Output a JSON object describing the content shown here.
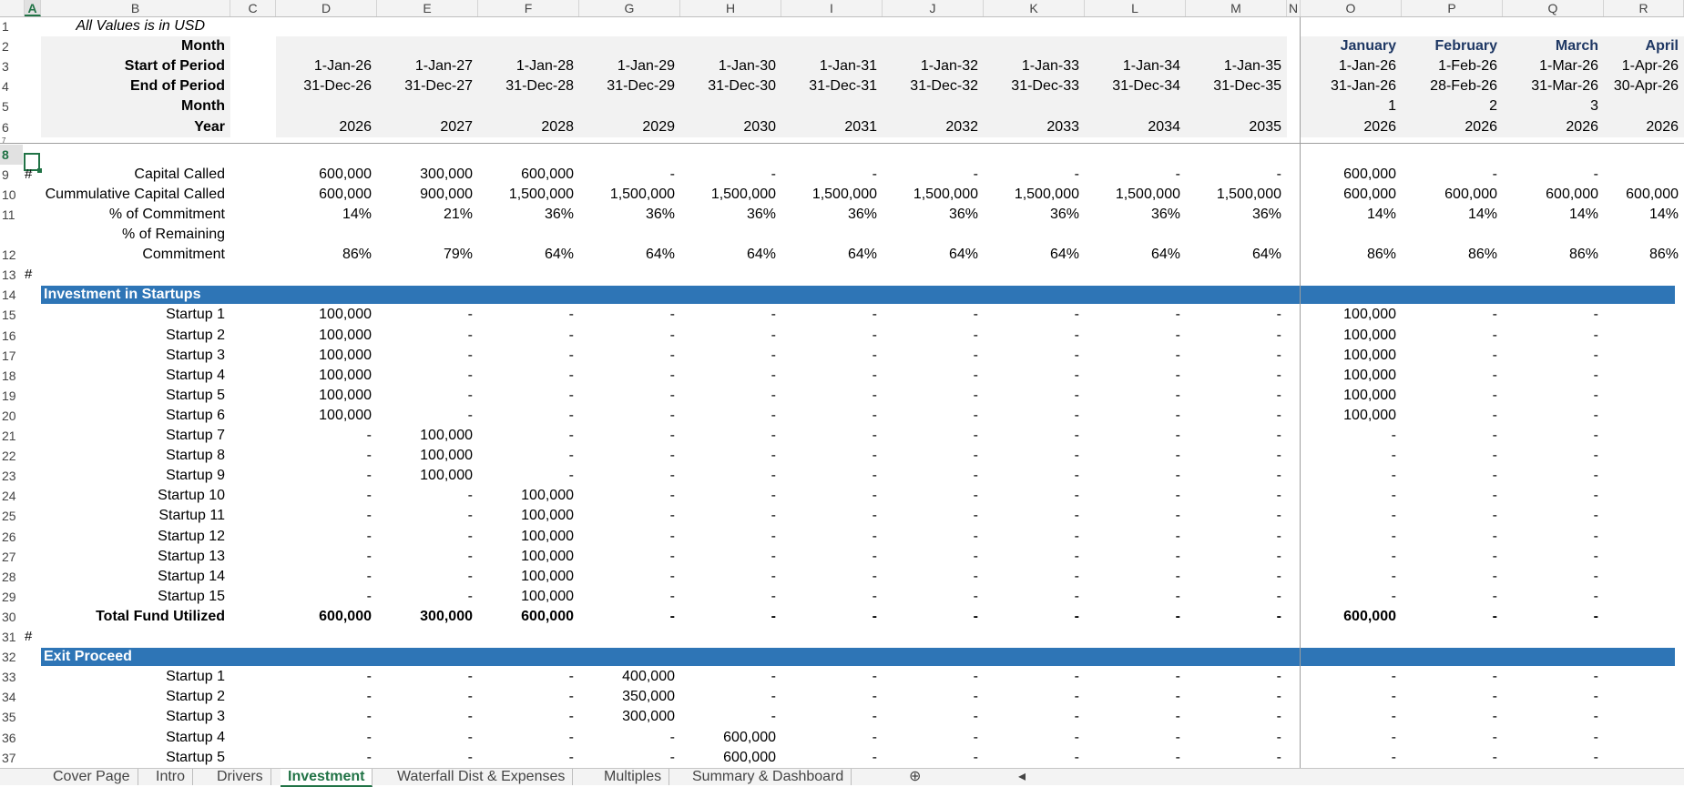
{
  "columns": [
    {
      "letter": "A",
      "x": 27,
      "w": 18,
      "active": true
    },
    {
      "letter": "B",
      "x": 45,
      "w": 208
    },
    {
      "letter": "C",
      "x": 253,
      "w": 50
    },
    {
      "letter": "D",
      "x": 303,
      "w": 111
    },
    {
      "letter": "E",
      "x": 414,
      "w": 111
    },
    {
      "letter": "F",
      "x": 525,
      "w": 111
    },
    {
      "letter": "G",
      "x": 636,
      "w": 111
    },
    {
      "letter": "H",
      "x": 747,
      "w": 111
    },
    {
      "letter": "I",
      "x": 858,
      "w": 111
    },
    {
      "letter": "J",
      "x": 969,
      "w": 111
    },
    {
      "letter": "K",
      "x": 1080,
      "w": 111
    },
    {
      "letter": "L",
      "x": 1191,
      "w": 111
    },
    {
      "letter": "M",
      "x": 1302,
      "w": 111
    },
    {
      "letter": "N",
      "x": 1413,
      "w": 15
    },
    {
      "letter": "O",
      "x": 1428,
      "w": 111
    },
    {
      "letter": "P",
      "x": 1539,
      "w": 111
    },
    {
      "letter": "Q",
      "x": 1650,
      "w": 111
    },
    {
      "letter": "R",
      "x": 1761,
      "w": 111
    }
  ],
  "note": "All Values is in USD",
  "header_labels": [
    "Month",
    "Start of Period",
    "End of Period",
    "Month",
    "Year"
  ],
  "annual": {
    "start": [
      "1-Jan-26",
      "1-Jan-27",
      "1-Jan-28",
      "1-Jan-29",
      "1-Jan-30",
      "1-Jan-31",
      "1-Jan-32",
      "1-Jan-33",
      "1-Jan-34",
      "1-Jan-35"
    ],
    "end": [
      "31-Dec-26",
      "31-Dec-27",
      "31-Dec-28",
      "31-Dec-29",
      "31-Dec-30",
      "31-Dec-31",
      "31-Dec-32",
      "31-Dec-33",
      "31-Dec-34",
      "31-Dec-35"
    ],
    "year": [
      "2026",
      "2027",
      "2028",
      "2029",
      "2030",
      "2031",
      "2032",
      "2033",
      "2034",
      "2035"
    ]
  },
  "monthly": {
    "month_name": [
      "January",
      "February",
      "March",
      "April"
    ],
    "start": [
      "1-Jan-26",
      "1-Feb-26",
      "1-Mar-26",
      "1-Apr-26"
    ],
    "end": [
      "31-Jan-26",
      "28-Feb-26",
      "31-Mar-26",
      "30-Apr-26"
    ],
    "month_num": [
      "1",
      "2",
      "3",
      ""
    ],
    "year": [
      "2026",
      "2026",
      "2026",
      "2026"
    ]
  },
  "capital": {
    "rows": [
      {
        "label": "Capital Called",
        "annual": [
          "600,000",
          "300,000",
          "600,000",
          "-",
          "-",
          "-",
          "-",
          "-",
          "-",
          "-"
        ],
        "monthly": [
          "600,000",
          "-",
          "-",
          ""
        ]
      },
      {
        "label": "Cummulative Capital Called",
        "annual": [
          "600,000",
          "900,000",
          "1,500,000",
          "1,500,000",
          "1,500,000",
          "1,500,000",
          "1,500,000",
          "1,500,000",
          "1,500,000",
          "1,500,000"
        ],
        "monthly": [
          "600,000",
          "600,000",
          "600,000",
          "600,000"
        ]
      },
      {
        "label": "% of Commitment",
        "annual": [
          "14%",
          "21%",
          "36%",
          "36%",
          "36%",
          "36%",
          "36%",
          "36%",
          "36%",
          "36%"
        ],
        "monthly": [
          "14%",
          "14%",
          "14%",
          "14%"
        ]
      }
    ],
    "remaining_label_1": "% of Remaining",
    "remaining_label_2": "Commitment",
    "remaining_annual": [
      "86%",
      "79%",
      "64%",
      "64%",
      "64%",
      "64%",
      "64%",
      "64%",
      "64%",
      "64%"
    ],
    "remaining_monthly": [
      "86%",
      "86%",
      "86%",
      "86%"
    ]
  },
  "investment": {
    "title": "Investment in Startups",
    "rows": [
      {
        "label": "Startup 1",
        "annual": [
          "100,000",
          "-",
          "-",
          "-",
          "-",
          "-",
          "-",
          "-",
          "-",
          "-"
        ],
        "monthly": [
          "100,000",
          "-",
          "-"
        ]
      },
      {
        "label": "Startup 2",
        "annual": [
          "100,000",
          "-",
          "-",
          "-",
          "-",
          "-",
          "-",
          "-",
          "-",
          "-"
        ],
        "monthly": [
          "100,000",
          "-",
          "-"
        ]
      },
      {
        "label": "Startup 3",
        "annual": [
          "100,000",
          "-",
          "-",
          "-",
          "-",
          "-",
          "-",
          "-",
          "-",
          "-"
        ],
        "monthly": [
          "100,000",
          "-",
          "-"
        ]
      },
      {
        "label": "Startup 4",
        "annual": [
          "100,000",
          "-",
          "-",
          "-",
          "-",
          "-",
          "-",
          "-",
          "-",
          "-"
        ],
        "monthly": [
          "100,000",
          "-",
          "-"
        ]
      },
      {
        "label": "Startup 5",
        "annual": [
          "100,000",
          "-",
          "-",
          "-",
          "-",
          "-",
          "-",
          "-",
          "-",
          "-"
        ],
        "monthly": [
          "100,000",
          "-",
          "-"
        ]
      },
      {
        "label": "Startup 6",
        "annual": [
          "100,000",
          "-",
          "-",
          "-",
          "-",
          "-",
          "-",
          "-",
          "-",
          "-"
        ],
        "monthly": [
          "100,000",
          "-",
          "-"
        ]
      },
      {
        "label": "Startup 7",
        "annual": [
          "-",
          "100,000",
          "-",
          "-",
          "-",
          "-",
          "-",
          "-",
          "-",
          "-"
        ],
        "monthly": [
          "-",
          "-",
          "-"
        ]
      },
      {
        "label": "Startup 8",
        "annual": [
          "-",
          "100,000",
          "-",
          "-",
          "-",
          "-",
          "-",
          "-",
          "-",
          "-"
        ],
        "monthly": [
          "-",
          "-",
          "-"
        ]
      },
      {
        "label": "Startup 9",
        "annual": [
          "-",
          "100,000",
          "-",
          "-",
          "-",
          "-",
          "-",
          "-",
          "-",
          "-"
        ],
        "monthly": [
          "-",
          "-",
          "-"
        ]
      },
      {
        "label": "Startup 10",
        "annual": [
          "-",
          "-",
          "100,000",
          "-",
          "-",
          "-",
          "-",
          "-",
          "-",
          "-"
        ],
        "monthly": [
          "-",
          "-",
          "-"
        ]
      },
      {
        "label": "Startup 11",
        "annual": [
          "-",
          "-",
          "100,000",
          "-",
          "-",
          "-",
          "-",
          "-",
          "-",
          "-"
        ],
        "monthly": [
          "-",
          "-",
          "-"
        ]
      },
      {
        "label": "Startup 12",
        "annual": [
          "-",
          "-",
          "100,000",
          "-",
          "-",
          "-",
          "-",
          "-",
          "-",
          "-"
        ],
        "monthly": [
          "-",
          "-",
          "-"
        ]
      },
      {
        "label": "Startup 13",
        "annual": [
          "-",
          "-",
          "100,000",
          "-",
          "-",
          "-",
          "-",
          "-",
          "-",
          "-"
        ],
        "monthly": [
          "-",
          "-",
          "-"
        ]
      },
      {
        "label": "Startup 14",
        "annual": [
          "-",
          "-",
          "100,000",
          "-",
          "-",
          "-",
          "-",
          "-",
          "-",
          "-"
        ],
        "monthly": [
          "-",
          "-",
          "-"
        ]
      },
      {
        "label": "Startup 15",
        "annual": [
          "-",
          "-",
          "100,000",
          "-",
          "-",
          "-",
          "-",
          "-",
          "-",
          "-"
        ],
        "monthly": [
          "-",
          "-",
          "-"
        ]
      }
    ],
    "total": {
      "label": "Total Fund Utilized",
      "annual": [
        "600,000",
        "300,000",
        "600,000",
        "-",
        "-",
        "-",
        "-",
        "-",
        "-",
        "-"
      ],
      "monthly": [
        "600,000",
        "-",
        "-"
      ]
    }
  },
  "exit": {
    "title": "Exit Proceed",
    "rows": [
      {
        "label": "Startup 1",
        "annual": [
          "-",
          "-",
          "-",
          "400,000",
          "-",
          "-",
          "-",
          "-",
          "-",
          "-"
        ],
        "monthly": [
          "-",
          "-",
          "-"
        ]
      },
      {
        "label": "Startup 2",
        "annual": [
          "-",
          "-",
          "-",
          "350,000",
          "-",
          "-",
          "-",
          "-",
          "-",
          "-"
        ],
        "monthly": [
          "-",
          "-",
          "-"
        ]
      },
      {
        "label": "Startup 3",
        "annual": [
          "-",
          "-",
          "-",
          "300,000",
          "-",
          "-",
          "-",
          "-",
          "-",
          "-"
        ],
        "monthly": [
          "-",
          "-",
          "-"
        ]
      },
      {
        "label": "Startup 4",
        "annual": [
          "-",
          "-",
          "-",
          "-",
          "600,000",
          "-",
          "-",
          "-",
          "-",
          "-"
        ],
        "monthly": [
          "-",
          "-",
          "-"
        ]
      },
      {
        "label": "Startup 5",
        "annual": [
          "-",
          "-",
          "-",
          "-",
          "600,000",
          "-",
          "-",
          "-",
          "-",
          "-"
        ],
        "monthly": [
          "-",
          "-",
          "-"
        ]
      }
    ]
  },
  "row_numbers": [
    "1",
    "2",
    "3",
    "4",
    "5",
    "6",
    "7",
    "8",
    "9",
    "10",
    "11",
    "12",
    "13",
    "14",
    "15",
    "16",
    "17",
    "18",
    "19",
    "20",
    "21",
    "22",
    "23",
    "24",
    "25",
    "26",
    "27",
    "28",
    "29",
    "30",
    "31",
    "32",
    "33",
    "34",
    "35",
    "36",
    "37"
  ],
  "hash": "#",
  "tabs": [
    {
      "label": "Cover Page",
      "x": 50
    },
    {
      "label": "Intro",
      "x": 163
    },
    {
      "label": "Drivers",
      "x": 230
    },
    {
      "label": "Investment",
      "x": 308,
      "active": true
    },
    {
      "label": "Waterfall Dist & Expenses",
      "x": 428
    },
    {
      "label": "Multiples",
      "x": 655
    },
    {
      "label": "Summary & Dashboard",
      "x": 752
    }
  ],
  "colors": {
    "band": "#2e75b6",
    "accent": "#217346",
    "header_fill": "#f2f2f2"
  }
}
